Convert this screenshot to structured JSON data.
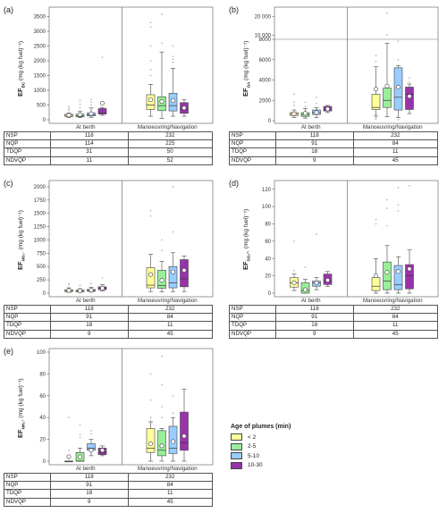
{
  "chart_data": [
    {
      "type": "box",
      "panel_label": "(a)",
      "ylabel_main": "EF",
      "ylabel_sub": "BC",
      "ylabel_unit": "(mg (kg fuel)⁻¹)",
      "yticks": [
        "0",
        "500",
        "1000",
        "1500",
        "2000",
        "2500",
        "3000",
        "3500"
      ],
      "ylim": [
        0,
        3700
      ],
      "categories": [
        "At berth",
        "Manoeuvring/Navigation"
      ],
      "groups": [
        "< 2",
        "2-5",
        "5-10",
        "10-30"
      ],
      "boxes": [
        [
          [
            70,
            110,
            150,
            185,
            230,
            155
          ],
          [
            70,
            100,
            140,
            190,
            280,
            175
          ],
          [
            80,
            130,
            170,
            230,
            400,
            205
          ],
          [
            150,
            195,
            220,
            380,
            420,
            560
          ]
        ],
        [
          [
            120,
            350,
            500,
            850,
            1200,
            680
          ],
          [
            50,
            310,
            480,
            780,
            2300,
            620
          ],
          [
            120,
            300,
            480,
            900,
            1750,
            650
          ],
          [
            120,
            220,
            350,
            580,
            680,
            400
          ]
        ]
      ],
      "outliers": [
        [
          [
            320,
            380,
            450
          ],
          [
            400,
            520,
            650
          ],
          [
            500,
            600,
            700
          ],
          [
            2120
          ]
        ],
        [
          [
            1500,
            1700,
            2000,
            2500,
            3150,
            3300
          ],
          [
            1250,
            1400,
            1600,
            1800,
            2000,
            2600,
            3580
          ],
          [
            1950,
            2050,
            2150,
            2500
          ],
          []
        ]
      ],
      "table": [
        {
          "label": "NSP",
          "values": [
            "118",
            "232"
          ]
        },
        {
          "label": "NQP",
          "values": [
            "114",
            "225"
          ]
        },
        {
          "label": "TDQP",
          "values": [
            "31",
            "50"
          ]
        },
        {
          "label": "NDVQP",
          "values": [
            "11",
            "52"
          ]
        }
      ]
    },
    {
      "type": "box",
      "panel_label": "(b)",
      "ylabel_main": "EF",
      "ylabel_sub": "OA",
      "ylabel_unit": "(mg (kg fuel)⁻¹)",
      "yticks": [
        "0",
        "2000",
        "4000",
        "6000",
        "8000"
      ],
      "yticks_upper": [
        "10 000",
        "20 000"
      ],
      "ylim": [
        0,
        8000
      ],
      "ylim_upper": [
        8000,
        22000
      ],
      "categories": [
        "At berth",
        "Manoeuvring/Navigation"
      ],
      "groups": [
        "< 2",
        "2-5",
        "5-10",
        "10-30"
      ],
      "boxes": [
        [
          [
            300,
            500,
            650,
            800,
            1050,
            680
          ],
          [
            250,
            420,
            600,
            780,
            1200,
            720
          ],
          [
            300,
            600,
            800,
            1050,
            1300,
            800
          ],
          [
            800,
            950,
            1100,
            1400,
            1500,
            1150
          ]
        ],
        [
          [
            450,
            1100,
            1300,
            2600,
            5300,
            3100
          ],
          [
            400,
            1300,
            2000,
            3200,
            7600,
            3400
          ],
          [
            300,
            1050,
            2300,
            5200,
            5400,
            3300
          ],
          [
            700,
            1100,
            2600,
            3300,
            3600,
            2400
          ]
        ]
      ],
      "outliers": [
        [
          [
            1500,
            1800,
            2600
          ],
          [
            1400,
            1800
          ],
          [
            1700,
            2300
          ],
          []
        ],
        [
          [
            150,
            300,
            5200,
            5800,
            6400
          ],
          [
            3900,
            5600,
            10200,
            21800
          ],
          [
            100,
            6000,
            7800
          ],
          [
            3800,
            4200
          ]
        ]
      ],
      "table": [
        {
          "label": "NSP",
          "values": [
            "118",
            "232"
          ]
        },
        {
          "label": "NQP",
          "values": [
            "91",
            "84"
          ]
        },
        {
          "label": "TDQP",
          "values": [
            "18",
            "11"
          ]
        },
        {
          "label": "NDVQP",
          "values": [
            "9",
            "45"
          ]
        }
      ]
    },
    {
      "type": "box",
      "panel_label": "(c)",
      "ylabel_main": "EF",
      "ylabel_sub": "NO₃⁻",
      "ylabel_unit": "(mg (kg fuel)⁻¹)",
      "yticks": [
        "0",
        "250",
        "500",
        "750",
        "1000",
        "1250",
        "1500",
        "1750",
        "2000"
      ],
      "ylim": [
        0,
        2050
      ],
      "categories": [
        "At berth",
        "Manoeuvring/Navigation"
      ],
      "groups": [
        "< 2",
        "2-5",
        "5-10",
        "10-30"
      ],
      "boxes": [
        [
          [
            15,
            30,
            45,
            65,
            100,
            50
          ],
          [
            15,
            25,
            40,
            55,
            85,
            45
          ],
          [
            20,
            35,
            50,
            70,
            110,
            55
          ],
          [
            40,
            65,
            90,
            120,
            160,
            95
          ]
        ],
        [
          [
            30,
            100,
            150,
            480,
            730,
            350
          ],
          [
            25,
            90,
            140,
            430,
            600,
            240
          ],
          [
            30,
            100,
            190,
            500,
            760,
            400
          ],
          [
            30,
            120,
            270,
            630,
            700,
            430
          ]
        ]
      ],
      "outliers": [
        [
          [
            160,
            180
          ],
          [
            150
          ],
          [
            180
          ],
          [
            290
          ]
        ],
        [
          [
            1450,
            1550
          ],
          [
            800,
            1000
          ],
          [
            1150,
            2000
          ],
          []
        ]
      ],
      "table": [
        {
          "label": "NSP",
          "values": [
            "118",
            "232"
          ]
        },
        {
          "label": "NQP",
          "values": [
            "91",
            "84"
          ]
        },
        {
          "label": "TDQP",
          "values": [
            "18",
            "11"
          ]
        },
        {
          "label": "NDVQP",
          "values": [
            "9",
            "45"
          ]
        }
      ]
    },
    {
      "type": "box",
      "panel_label": "(d)",
      "ylabel_main": "EF",
      "ylabel_sub": "SO₄²⁻",
      "ylabel_unit": "(mg (kg fuel)⁻¹)",
      "yticks": [
        "0",
        "20",
        "40",
        "60",
        "80",
        "100",
        "120"
      ],
      "ylim": [
        0,
        126
      ],
      "categories": [
        "At berth",
        "Manoeuvring/Navigation"
      ],
      "groups": [
        "< 2",
        "2-5",
        "5-10",
        "10-30"
      ],
      "boxes": [
        [
          [
            3,
            7,
            12,
            18,
            22,
            12
          ],
          [
            0,
            0,
            3,
            12,
            16,
            4
          ],
          [
            4,
            8,
            12,
            14,
            18,
            12
          ],
          [
            8,
            10,
            14,
            22,
            25,
            15
          ]
        ],
        [
          [
            0,
            3,
            8,
            18,
            40,
            20
          ],
          [
            0,
            4,
            14,
            36,
            55,
            24
          ],
          [
            0,
            4,
            10,
            32,
            42,
            25
          ],
          [
            0,
            5,
            20,
            33,
            50,
            28
          ]
        ]
      ],
      "outliers": [
        [
          [
            26,
            60
          ],
          [
            30
          ],
          [
            68
          ],
          []
        ],
        [
          [
            80,
            85
          ],
          [
            78,
            98,
            108
          ],
          [
            95,
            102,
            122
          ],
          [
            124
          ]
        ]
      ],
      "table": [
        {
          "label": "NSP",
          "values": [
            "118",
            "232"
          ]
        },
        {
          "label": "NQP",
          "values": [
            "91",
            "84"
          ]
        },
        {
          "label": "TDQP",
          "values": [
            "18",
            "11"
          ]
        },
        {
          "label": "NDVQP",
          "values": [
            "9",
            "45"
          ]
        }
      ]
    },
    {
      "type": "box",
      "panel_label": "(e)",
      "ylabel_main": "EF",
      "ylabel_sub": "NH₄⁺",
      "ylabel_unit": "(mg (kg fuel)⁻¹)",
      "yticks": [
        "0",
        "20",
        "40",
        "60",
        "80",
        "100"
      ],
      "ylim": [
        0,
        100
      ],
      "categories": [
        "At berth",
        "Manoeuvring/Navigation"
      ],
      "groups": [
        "< 2",
        "2-5",
        "5-10",
        "10-30"
      ],
      "boxes": [
        [
          [
            0,
            0,
            0,
            0,
            0,
            4
          ],
          [
            0,
            0,
            0,
            8,
            12,
            4
          ],
          [
            5,
            10,
            12,
            16,
            20,
            10
          ],
          [
            5,
            6,
            8,
            12,
            14,
            10
          ]
        ],
        [
          [
            0,
            8,
            12,
            30,
            36,
            16
          ],
          [
            0,
            5,
            10,
            28,
            30,
            14
          ],
          [
            0,
            7,
            12,
            32,
            40,
            18
          ],
          [
            0,
            10,
            17,
            45,
            66,
            23
          ]
        ]
      ],
      "outliers": [
        [
          [
            3,
            6,
            10,
            40
          ],
          [
            22,
            25,
            33
          ],
          [
            25,
            28
          ],
          []
        ],
        [
          [
            37,
            40,
            56,
            80
          ],
          [
            40,
            50,
            70,
            96
          ],
          [
            44,
            60
          ],
          []
        ]
      ],
      "table": [
        {
          "label": "NSP",
          "values": [
            "118",
            "232"
          ]
        },
        {
          "label": "NQP",
          "values": [
            "91",
            "84"
          ]
        },
        {
          "label": "TDQP",
          "values": [
            "18",
            "11"
          ]
        },
        {
          "label": "NDVQP",
          "values": [
            "9",
            "45"
          ]
        }
      ]
    }
  ],
  "legend": {
    "title": "Age of plumes (min)",
    "items": [
      {
        "label": "< 2",
        "color": "#ffff99"
      },
      {
        "label": "2-5",
        "color": "#99ee99"
      },
      {
        "label": "5-10",
        "color": "#99ccff"
      },
      {
        "label": "10-30",
        "color": "#9933aa"
      }
    ]
  }
}
